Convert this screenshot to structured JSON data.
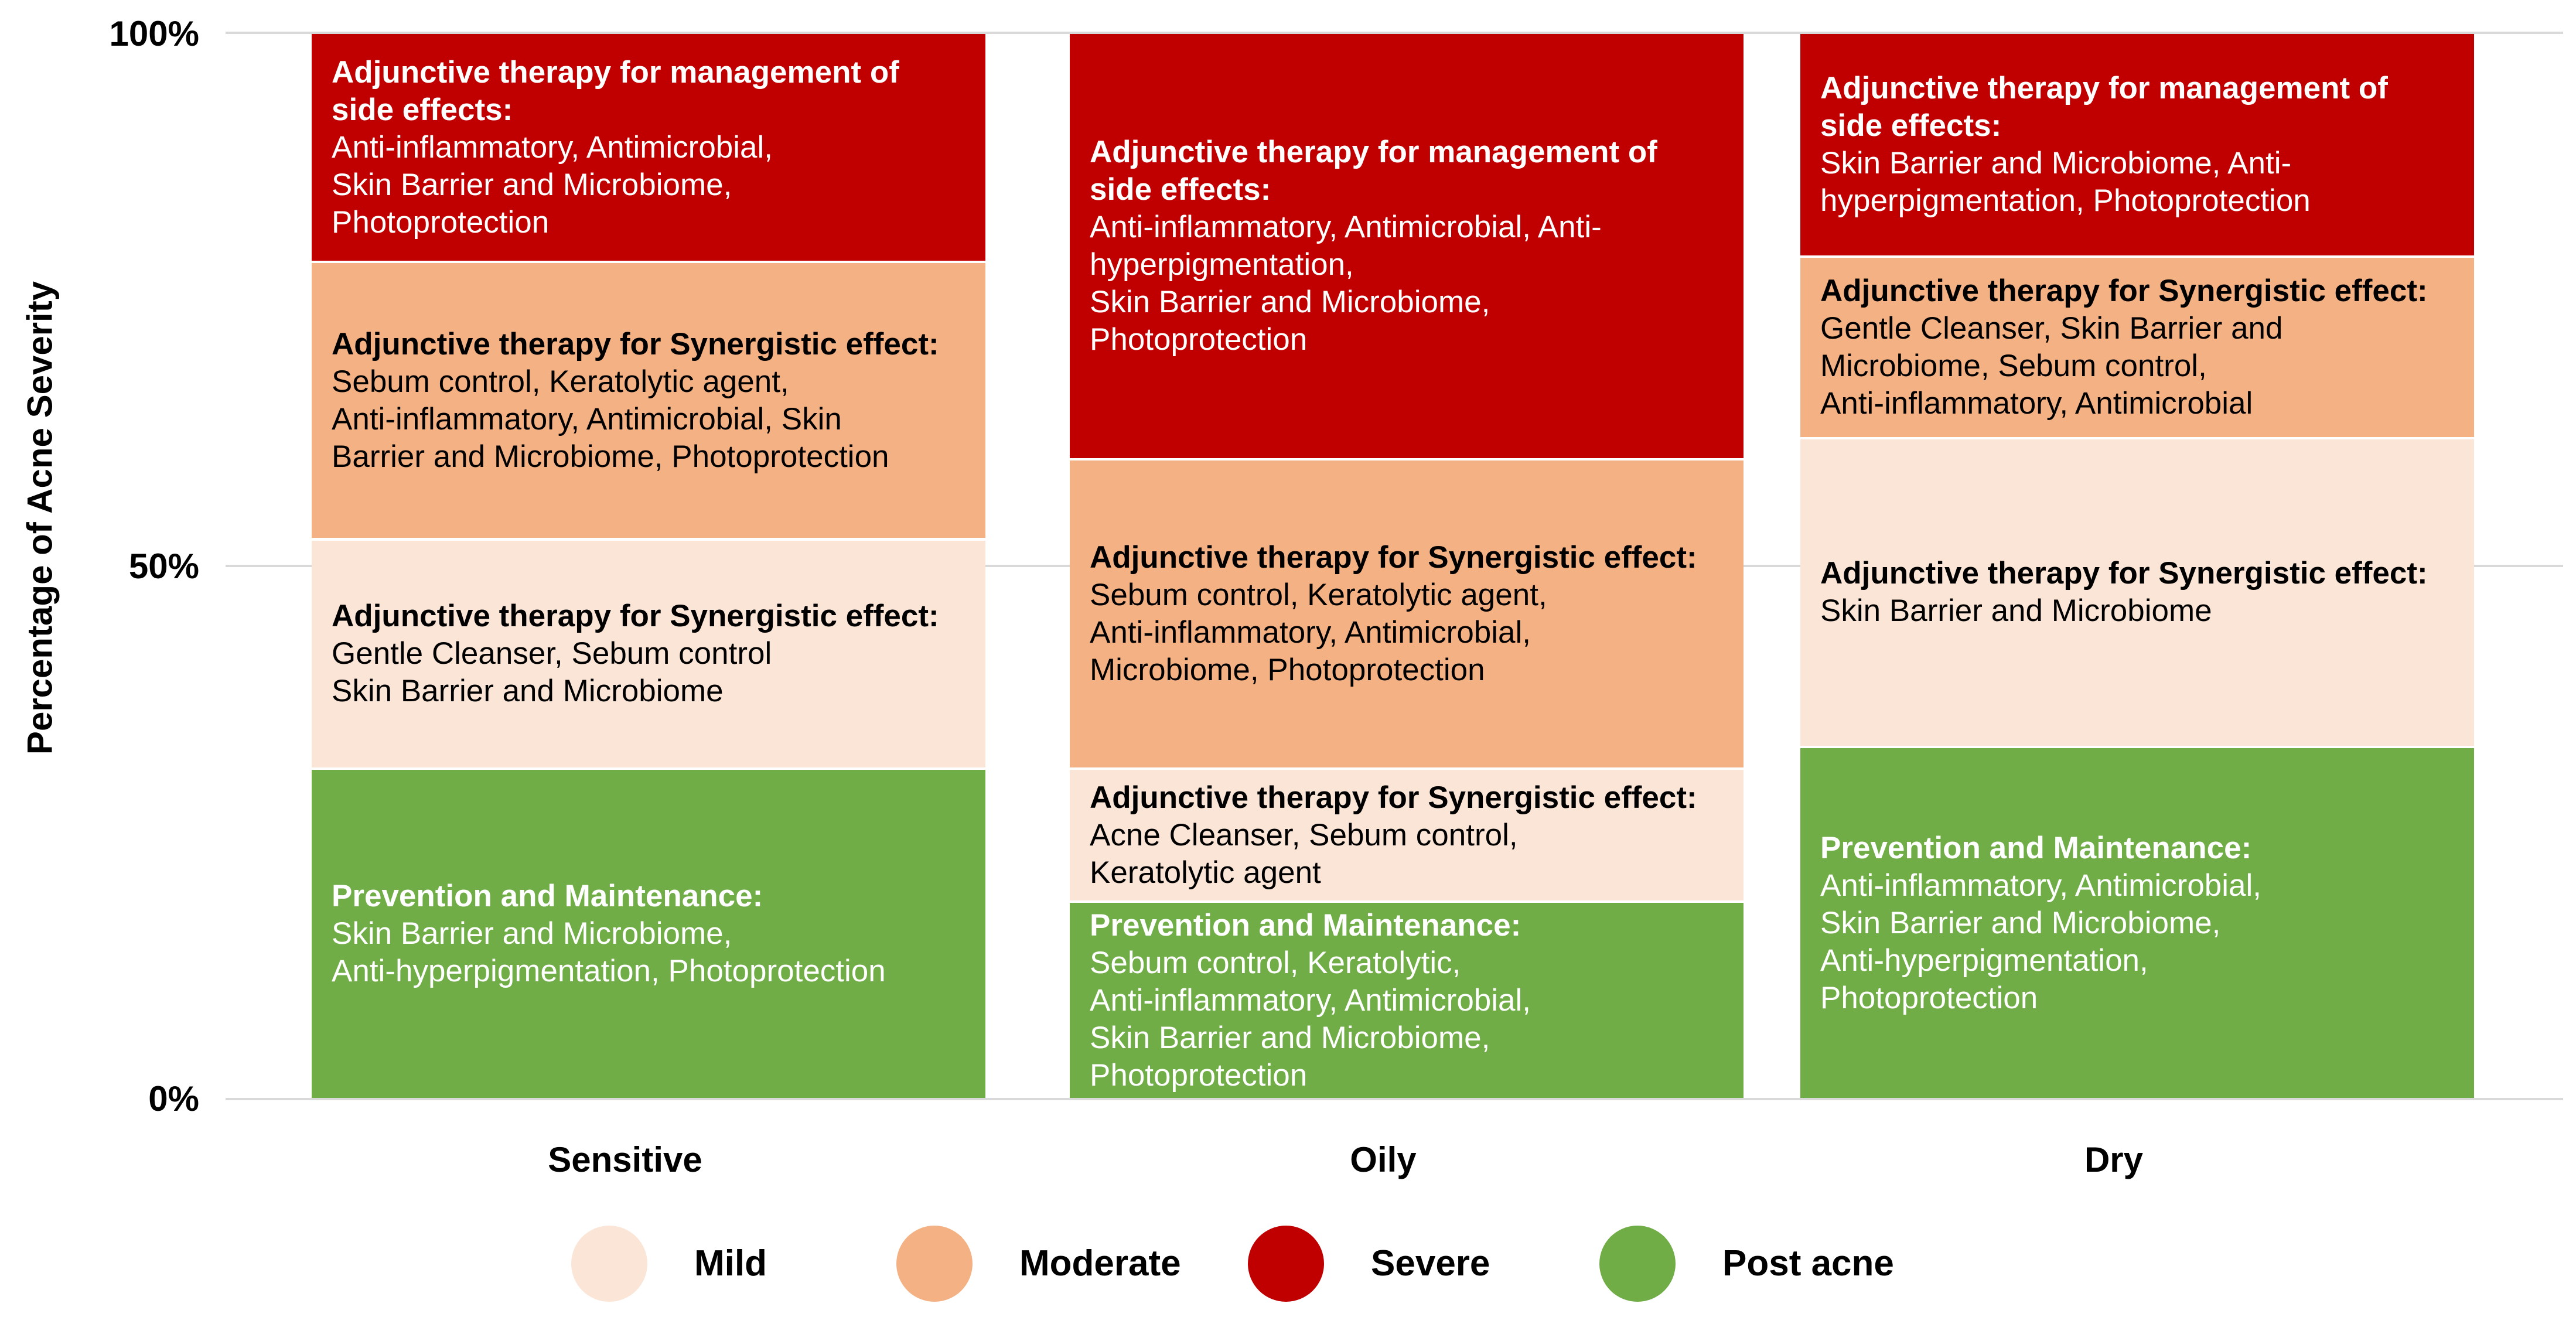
{
  "chart_data": {
    "type": "bar",
    "stacked": true,
    "ylabel": "Percentage of Acne Severity",
    "yticks": [
      "0%",
      "50%",
      "100%"
    ],
    "ylim": [
      0,
      100
    ],
    "grid": true,
    "legend_position": "bottom",
    "categories": [
      "Sensitive",
      "Oily",
      "Dry"
    ],
    "series": [
      {
        "name": "Post acne",
        "color": "#70ad47",
        "values": [
          31,
          18.5,
          33
        ],
        "text_color": "#ffffff",
        "labels": [
          {
            "heading": "Prevention and Maintenance:",
            "lines": [
              "Skin Barrier and Microbiome,",
              "Anti-hyperpigmentation, Photoprotection"
            ]
          },
          {
            "heading": "Prevention and Maintenance:",
            "lines": [
              "Sebum control, Keratolytic,",
              "Anti-inflammatory, Antimicrobial,",
              "Skin Barrier and Microbiome,",
              "Photoprotection"
            ]
          },
          {
            "heading": "Prevention and Maintenance:",
            "lines": [
              "Anti-inflammatory, Antimicrobial,",
              "Skin Barrier and Microbiome,",
              "Anti-hyperpigmentation,",
              "Photoprotection"
            ]
          }
        ]
      },
      {
        "name": "Mild",
        "color": "#fbe5d6",
        "values": [
          21.5,
          12.5,
          29
        ],
        "text_color": "#000000",
        "labels": [
          {
            "heading": "Adjunctive therapy for Synergistic effect:",
            "lines": [
              "Gentle Cleanser, Sebum control",
              "Skin Barrier and Microbiome"
            ]
          },
          {
            "heading": "Adjunctive therapy for Synergistic effect:",
            "lines": [
              "Acne Cleanser, Sebum control,",
              "Keratolytic agent"
            ]
          },
          {
            "heading": "Adjunctive therapy for Synergistic effect:",
            "lines": [
              "Skin Barrier and Microbiome"
            ]
          }
        ]
      },
      {
        "name": "Moderate",
        "color": "#f4b183",
        "values": [
          26,
          29,
          17
        ],
        "text_color": "#000000",
        "labels": [
          {
            "heading": "Adjunctive therapy for Synergistic effect:",
            "lines": [
              "Sebum control, Keratolytic agent,",
              "Anti-inflammatory, Antimicrobial, Skin",
              "Barrier and Microbiome, Photoprotection"
            ]
          },
          {
            "heading": "Adjunctive therapy for Synergistic effect:",
            "lines": [
              "Sebum control, Keratolytic agent,",
              "Anti-inflammatory, Antimicrobial,",
              "Microbiome, Photoprotection"
            ]
          },
          {
            "heading": "Adjunctive therapy for Synergistic effect:",
            "lines": [
              "Gentle Cleanser, Skin Barrier and",
              "Microbiome, Sebum control,",
              "Anti-inflammatory, Antimicrobial"
            ]
          }
        ]
      },
      {
        "name": "Severe",
        "color": "#c00000",
        "values": [
          21.5,
          40,
          21
        ],
        "text_color": "#ffffff",
        "labels": [
          {
            "heading": "Adjunctive therapy for management of side effects:",
            "lines": [
              "Anti-inflammatory, Antimicrobial,",
              "Skin Barrier and Microbiome,",
              "Photoprotection"
            ]
          },
          {
            "heading": "Adjunctive therapy for management of side effects:",
            "lines": [
              "Anti-inflammatory, Antimicrobial, Anti-hyperpigmentation,",
              "Skin Barrier and Microbiome,",
              "Photoprotection"
            ]
          },
          {
            "heading": "Adjunctive therapy for management of side effects:",
            "lines": [
              "Skin Barrier and Microbiome, Anti-hyperpigmentation, Photoprotection"
            ]
          }
        ]
      }
    ],
    "legend": [
      "Mild",
      "Moderate",
      "Severe",
      "Post acne"
    ]
  }
}
